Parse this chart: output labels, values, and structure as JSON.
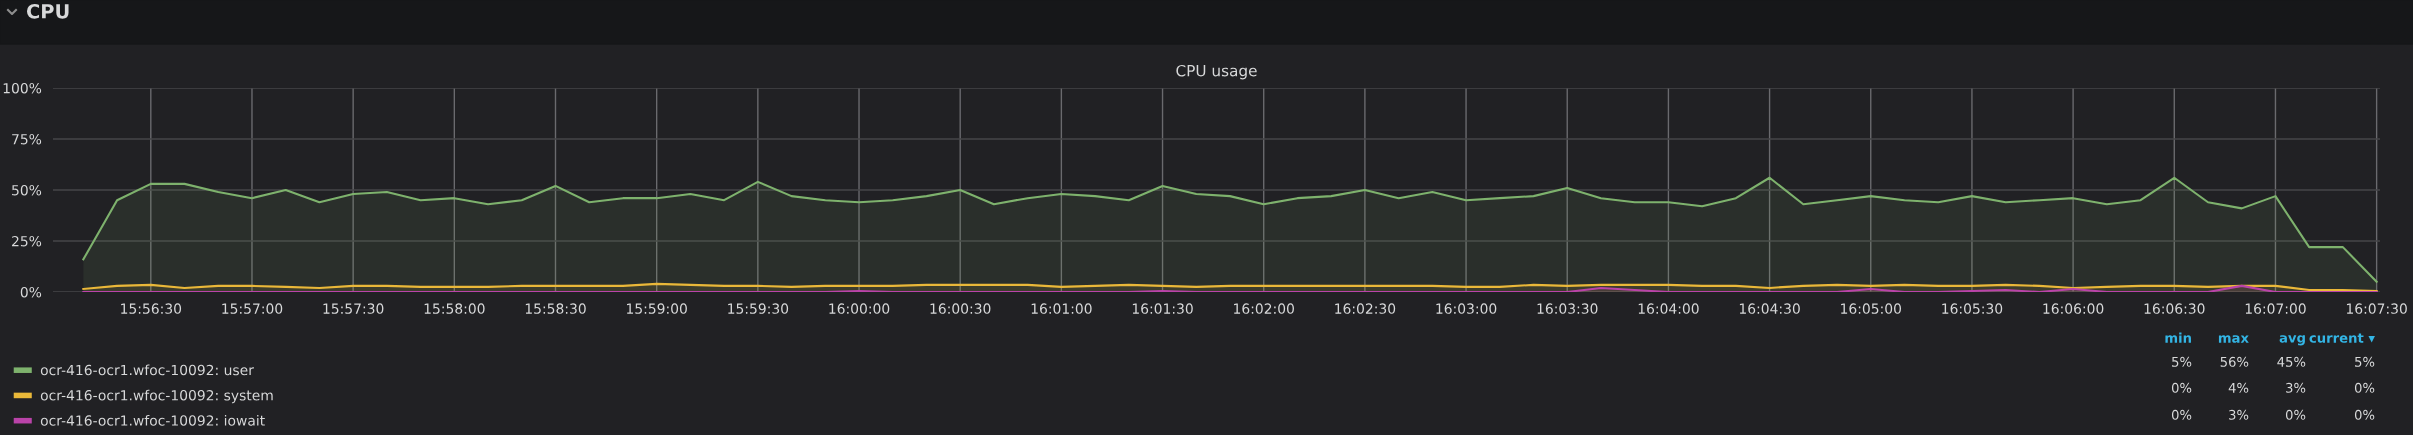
{
  "chart_data": {
    "type": "area",
    "title": "CPU usage",
    "x": [
      15.936111,
      15.938889,
      15.941667,
      15.944444,
      15.947222,
      15.95,
      15.952778,
      15.955556,
      15.958333,
      15.961111,
      15.963889,
      15.966667,
      15.969444,
      15.972222,
      15.975,
      15.977778,
      15.980556,
      15.983333,
      15.986111,
      15.988889,
      15.991667,
      15.994444,
      15.997222,
      16.0,
      16.002778,
      16.005556,
      16.008333,
      16.011111,
      16.013889,
      16.016667,
      16.019444,
      16.022222,
      16.025,
      16.027778,
      16.030556,
      16.033333,
      16.036111,
      16.038889,
      16.041667,
      16.044444,
      16.047222,
      16.05,
      16.052778,
      16.055556,
      16.058333,
      16.061111,
      16.063889,
      16.066667,
      16.069444,
      16.072222,
      16.075,
      16.077778,
      16.080556,
      16.083333,
      16.086111,
      16.088889,
      16.091667,
      16.094444,
      16.097222,
      16.1,
      16.102778,
      16.105556,
      16.108333,
      16.111111,
      16.113889,
      16.116667,
      16.119444,
      16.122222,
      16.125
    ],
    "series": [
      {
        "name": "ocr-416-ocr1.wfoc-10092: user",
        "color": "#7eb26d",
        "values": [
          16,
          45,
          53,
          53,
          49,
          46,
          50,
          44,
          48,
          49,
          45,
          46,
          43,
          45,
          52,
          44,
          46,
          46,
          48,
          45,
          54,
          47,
          45,
          44,
          45,
          47,
          50,
          43,
          46,
          48,
          47,
          45,
          52,
          48,
          47,
          43,
          46,
          47,
          50,
          46,
          49,
          45,
          46,
          47,
          51,
          46,
          44,
          44,
          42,
          46,
          56,
          43,
          45,
          47,
          45,
          44,
          47,
          44,
          45,
          46,
          43,
          45,
          56,
          44,
          41,
          47,
          22,
          22,
          5
        ]
      },
      {
        "name": "ocr-416-ocr1.wfoc-10092: system",
        "color": "#eab839",
        "values": [
          1.5,
          3,
          3.5,
          2,
          3,
          3,
          2.5,
          2,
          3,
          3,
          2.5,
          2.5,
          2.5,
          3,
          3,
          3,
          3,
          4,
          3.5,
          3,
          3,
          2.5,
          3,
          3,
          3,
          3.5,
          3.5,
          3.5,
          3.5,
          2.5,
          3,
          3.5,
          3,
          2.5,
          3,
          3,
          3,
          3,
          3,
          3,
          3,
          2.5,
          2.5,
          3.5,
          3,
          3.5,
          3.5,
          3.5,
          3,
          3,
          2,
          3,
          3.5,
          3,
          3.5,
          3,
          3,
          3.5,
          3,
          2,
          2.5,
          3,
          3,
          2.5,
          3,
          3,
          1,
          1,
          0.5
        ]
      },
      {
        "name": "ocr-416-ocr1.wfoc-10092: iowait",
        "color": "#ba43a9",
        "values": [
          0,
          0,
          0,
          0,
          0,
          0,
          0,
          0,
          0,
          0,
          0,
          0,
          0,
          0,
          0,
          0,
          0,
          0,
          0,
          0,
          0,
          0,
          0,
          0.5,
          0,
          0,
          0,
          0,
          0,
          0,
          0,
          0,
          0.5,
          0,
          0,
          0,
          0,
          0,
          0,
          0,
          0,
          0,
          0,
          0,
          0,
          2,
          1,
          0,
          0,
          0,
          0,
          0,
          0,
          1.5,
          0,
          0,
          0.5,
          1,
          0,
          1.5,
          0,
          0,
          0,
          0,
          3,
          0,
          0,
          0,
          0
        ]
      }
    ],
    "xlim": [
      15.933611,
      16.125278
    ],
    "xticks": [
      {
        "value": 15.941667,
        "label": "15:56:30"
      },
      {
        "value": 15.95,
        "label": "15:57:00"
      },
      {
        "value": 15.958333,
        "label": "15:57:30"
      },
      {
        "value": 15.966667,
        "label": "15:58:00"
      },
      {
        "value": 15.975,
        "label": "15:58:30"
      },
      {
        "value": 15.983333,
        "label": "15:59:00"
      },
      {
        "value": 15.991667,
        "label": "15:59:30"
      },
      {
        "value": 16.0,
        "label": "16:00:00"
      },
      {
        "value": 16.008333,
        "label": "16:00:30"
      },
      {
        "value": 16.016667,
        "label": "16:01:00"
      },
      {
        "value": 16.025,
        "label": "16:01:30"
      },
      {
        "value": 16.033333,
        "label": "16:02:00"
      },
      {
        "value": 16.041667,
        "label": "16:02:30"
      },
      {
        "value": 16.05,
        "label": "16:03:00"
      },
      {
        "value": 16.058333,
        "label": "16:03:30"
      },
      {
        "value": 16.066667,
        "label": "16:04:00"
      },
      {
        "value": 16.075,
        "label": "16:04:30"
      },
      {
        "value": 16.083333,
        "label": "16:05:00"
      },
      {
        "value": 16.091667,
        "label": "16:05:30"
      },
      {
        "value": 16.1,
        "label": "16:06:00"
      },
      {
        "value": 16.108333,
        "label": "16:06:30"
      },
      {
        "value": 16.116667,
        "label": "16:07:00"
      },
      {
        "value": 16.125,
        "label": "16:07:30"
      }
    ],
    "ylim": [
      0,
      100
    ],
    "yticks": [
      {
        "value": 0,
        "label": "0%"
      },
      {
        "value": 25,
        "label": "25%"
      },
      {
        "value": 50,
        "label": "50%"
      },
      {
        "value": 75,
        "label": "75%"
      },
      {
        "value": 100,
        "label": "100%"
      }
    ],
    "grid": true,
    "legend": "bottom",
    "annotations": [
      "CPU",
      "min",
      "max",
      "avg",
      "current ▾",
      "5%",
      "56%",
      "45%",
      "5%",
      "0%",
      "4%",
      "3%",
      "0%",
      "0%",
      "3%",
      "0%",
      "0%"
    ]
  }
}
